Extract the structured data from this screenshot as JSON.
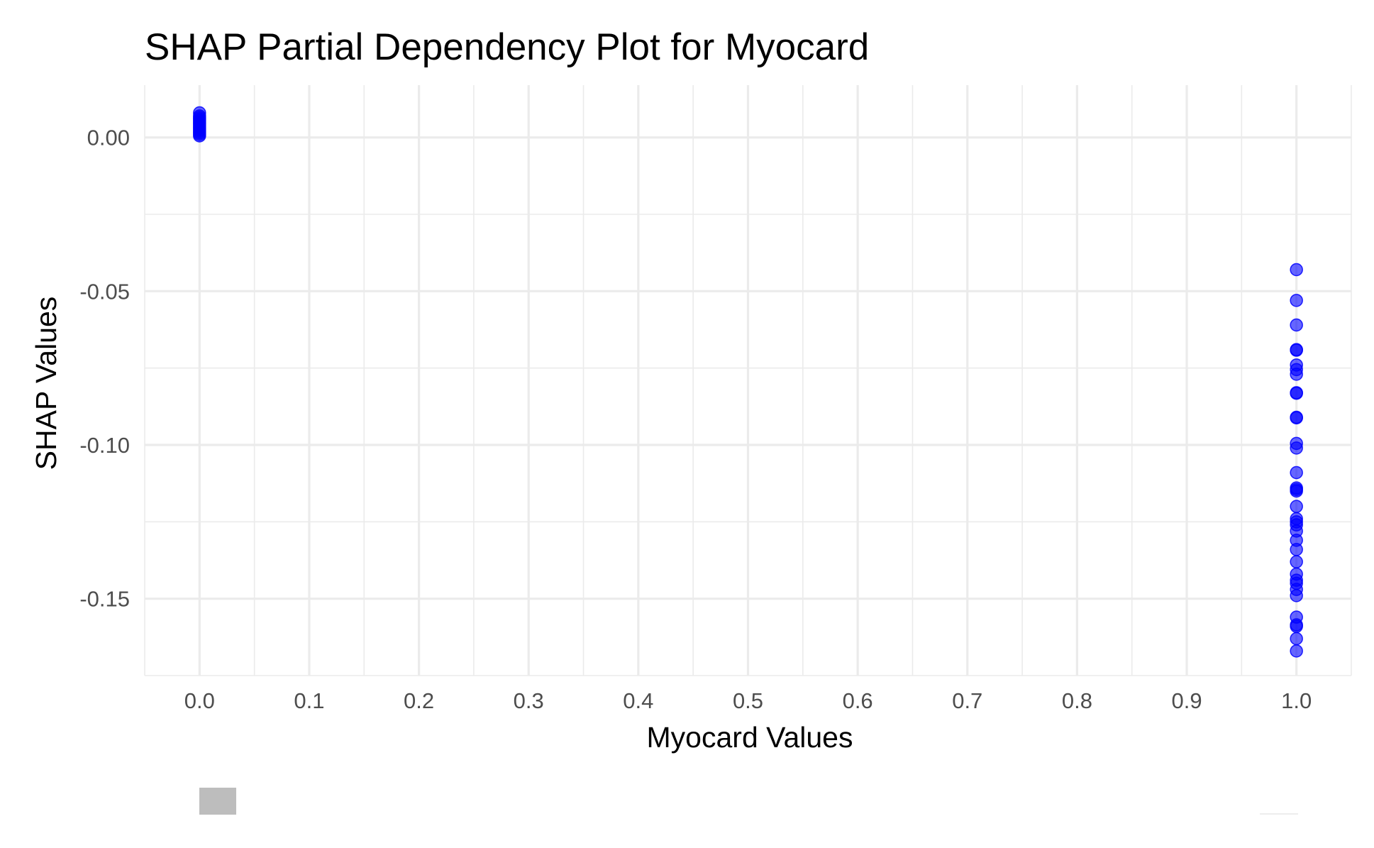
{
  "chart_data": {
    "type": "scatter",
    "title": "SHAP Partial Dependency Plot for Myocard",
    "xlabel": "Myocard Values",
    "ylabel": "SHAP Values",
    "xlim": [
      -0.05,
      1.05
    ],
    "ylim": [
      -0.175,
      0.017
    ],
    "x_ticks": [
      0.0,
      0.1,
      0.2,
      0.3,
      0.4,
      0.5,
      0.6,
      0.7,
      0.8,
      0.9,
      1.0
    ],
    "x_tick_labels": [
      "0.0",
      "0.1",
      "0.2",
      "0.3",
      "0.4",
      "0.5",
      "0.6",
      "0.7",
      "0.8",
      "0.9",
      "1.0"
    ],
    "y_ticks": [
      0.0,
      -0.05,
      -0.1,
      -0.15
    ],
    "y_tick_labels": [
      "0.00",
      "-0.05",
      "-0.10",
      "-0.15"
    ],
    "grid": true,
    "legend": "none",
    "point_color": "#0000ff",
    "series": [
      {
        "points": [
          [
            0,
            0.008
          ],
          [
            0,
            0.007
          ],
          [
            0,
            0.0065
          ],
          [
            0,
            0.006
          ],
          [
            0,
            0.0055
          ],
          [
            0,
            0.005
          ],
          [
            0,
            0.0045
          ],
          [
            0,
            0.004
          ],
          [
            0,
            0.0035
          ],
          [
            0,
            0.003
          ],
          [
            0,
            0.0025
          ],
          [
            0,
            0.002
          ],
          [
            0,
            0.0015
          ],
          [
            0,
            0.001
          ],
          [
            0,
            0.0005
          ],
          [
            1,
            -0.043
          ],
          [
            1,
            -0.053
          ],
          [
            1,
            -0.061
          ],
          [
            1,
            -0.069
          ],
          [
            1,
            -0.0692
          ],
          [
            1,
            -0.074
          ],
          [
            1,
            -0.0755
          ],
          [
            1,
            -0.077
          ],
          [
            1,
            -0.083
          ],
          [
            1,
            -0.0832
          ],
          [
            1,
            -0.091
          ],
          [
            1,
            -0.0912
          ],
          [
            1,
            -0.0995
          ],
          [
            1,
            -0.101
          ],
          [
            1,
            -0.109
          ],
          [
            1,
            -0.114
          ],
          [
            1,
            -0.1145
          ],
          [
            1,
            -0.115
          ],
          [
            1,
            -0.12
          ],
          [
            1,
            -0.124
          ],
          [
            1,
            -0.125
          ],
          [
            1,
            -0.126
          ],
          [
            1,
            -0.128
          ],
          [
            1,
            -0.131
          ],
          [
            1,
            -0.134
          ],
          [
            1,
            -0.138
          ],
          [
            1,
            -0.142
          ],
          [
            1,
            -0.144
          ],
          [
            1,
            -0.145
          ],
          [
            1,
            -0.147
          ],
          [
            1,
            -0.149
          ],
          [
            1,
            -0.156
          ],
          [
            1,
            -0.1585
          ],
          [
            1,
            -0.159
          ],
          [
            1,
            -0.163
          ],
          [
            1,
            -0.167
          ]
        ]
      }
    ]
  }
}
